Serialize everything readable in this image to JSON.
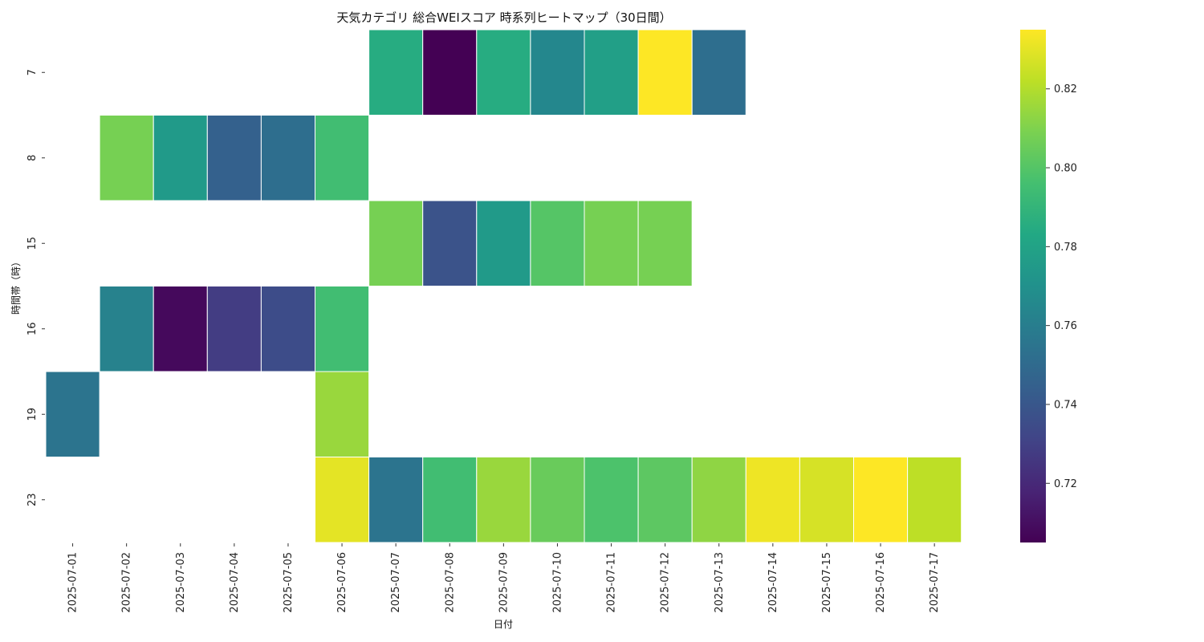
{
  "chart_data": {
    "type": "heatmap",
    "title": "天気カテゴリ 総合WEIスコア 時系列ヒートマップ（30日間）",
    "xlabel": "日付",
    "ylabel": "時間帯（時）",
    "x": [
      "2025-07-01",
      "2025-07-02",
      "2025-07-03",
      "2025-07-04",
      "2025-07-05",
      "2025-07-06",
      "2025-07-07",
      "2025-07-08",
      "2025-07-09",
      "2025-07-10",
      "2025-07-11",
      "2025-07-12",
      "2025-07-13",
      "2025-07-14",
      "2025-07-15",
      "2025-07-16",
      "2025-07-17"
    ],
    "y": [
      "7",
      "8",
      "15",
      "16",
      "19",
      "23"
    ],
    "values": [
      [
        null,
        null,
        null,
        null,
        null,
        null,
        0.785,
        0.705,
        0.785,
        0.765,
        0.778,
        0.835,
        0.752
      ],
      [
        null,
        0.808,
        0.775,
        0.745,
        0.752,
        0.795
      ],
      [
        null,
        null,
        null,
        null,
        null,
        null,
        0.808,
        0.738,
        0.775,
        0.8,
        0.808,
        0.808
      ],
      [
        null,
        0.762,
        0.708,
        0.728,
        0.735,
        0.795
      ],
      [
        0.755,
        null,
        null,
        null,
        null,
        0.815
      ],
      [
        null,
        null,
        null,
        null,
        null,
        0.83,
        0.755,
        0.795,
        0.815,
        0.805,
        0.798,
        0.802,
        0.813,
        0.832,
        0.827,
        0.835,
        0.822
      ]
    ],
    "colormap": "viridis",
    "colorbar": {
      "min": 0.705,
      "max": 0.835,
      "ticks": [
        0.72,
        0.74,
        0.76,
        0.78,
        0.8,
        0.82
      ]
    },
    "grid": false
  }
}
